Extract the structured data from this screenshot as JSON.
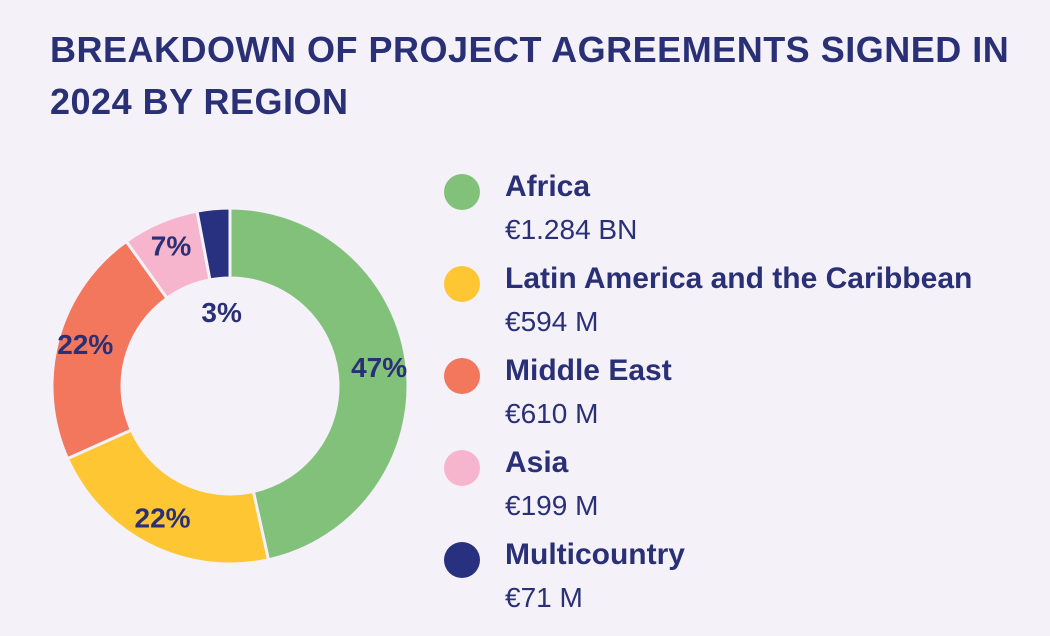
{
  "chart_data": {
    "type": "pie",
    "title": "BREAKDOWN OF PROJECT AGREEMENTS SIGNED IN 2024 BY REGION",
    "slices": [
      {
        "name": "Africa",
        "percent": 47,
        "label": "47%",
        "amount": "€1.284 BN",
        "color": "#82c17a"
      },
      {
        "name": "Latin America and the Caribbean",
        "percent": 22,
        "label": "22%",
        "amount": "€594 M",
        "color": "#ffc634"
      },
      {
        "name": "Middle East",
        "percent": 22,
        "label": "22%",
        "amount": "€610 M",
        "color": "#f2775c"
      },
      {
        "name": "Asia",
        "percent": 7,
        "label": "7%",
        "amount": "€199 M",
        "color": "#f6b5cc"
      },
      {
        "name": "Multicountry",
        "percent": 3,
        "label": "3%",
        "amount": "€71 M",
        "color": "#283180"
      }
    ],
    "legend_position": "right",
    "label_color": "#2a3075"
  }
}
